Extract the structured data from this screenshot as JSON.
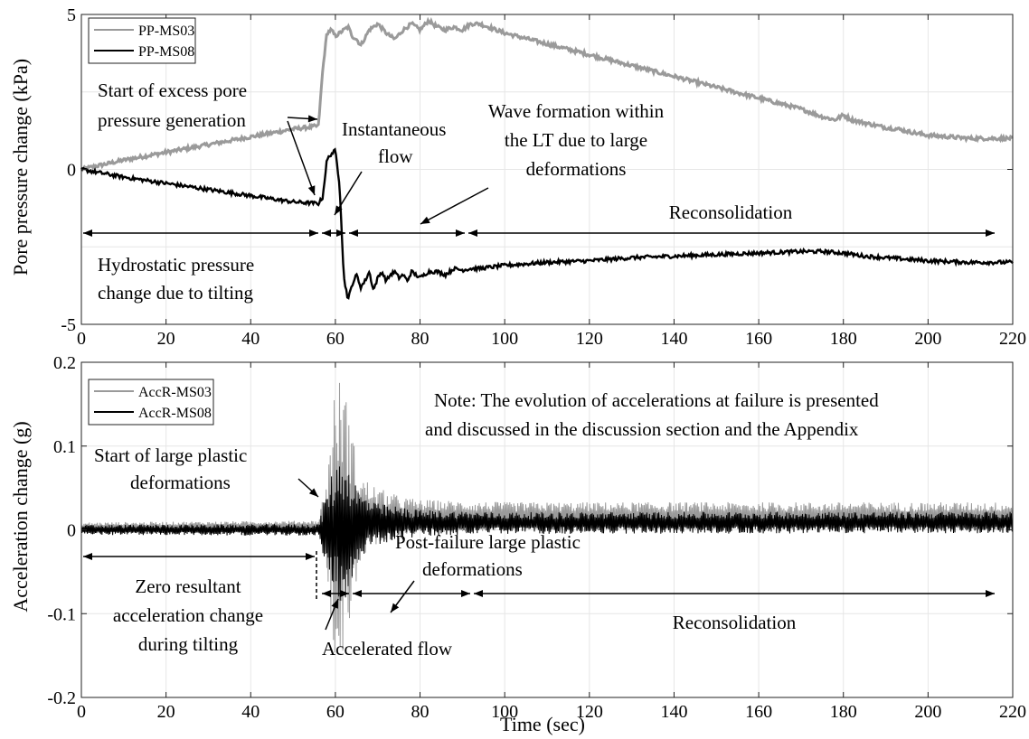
{
  "chart_data": [
    {
      "type": "line",
      "id": "top",
      "ylabel": "Pore pressure change (kPa)",
      "xlabel": "",
      "xlim": [
        0,
        220
      ],
      "ylim": [
        -5,
        5
      ],
      "xticks": [
        "0",
        "20",
        "40",
        "60",
        "80",
        "100",
        "120",
        "140",
        "160",
        "180",
        "200",
        "220"
      ],
      "yticks": [
        "5",
        "0",
        "-5"
      ],
      "grid": true,
      "legend_position": "top-left",
      "series": [
        {
          "name": "PP-MS03",
          "color": "#9a9a9a",
          "x": [
            0,
            10,
            20,
            30,
            40,
            50,
            56,
            57,
            58,
            59,
            60,
            61,
            62,
            63,
            64,
            65,
            66,
            68,
            70,
            72,
            74,
            76,
            78,
            80,
            82,
            84,
            86,
            88,
            90,
            92,
            94,
            96,
            100,
            110,
            120,
            130,
            140,
            150,
            160,
            170,
            175,
            178,
            180,
            182,
            185,
            190,
            193,
            196,
            200,
            210,
            220
          ],
          "y": [
            0,
            0.3,
            0.55,
            0.8,
            1.05,
            1.3,
            1.4,
            3.2,
            4.4,
            4.5,
            4.3,
            4.4,
            4.5,
            4.6,
            4.3,
            4.2,
            4.0,
            4.5,
            4.7,
            4.4,
            4.2,
            4.5,
            4.7,
            4.5,
            4.8,
            4.6,
            4.5,
            4.6,
            4.5,
            4.7,
            4.7,
            4.6,
            4.4,
            4.05,
            3.7,
            3.35,
            3.0,
            2.65,
            2.3,
            1.95,
            1.7,
            1.6,
            1.75,
            1.6,
            1.5,
            1.35,
            1.3,
            1.2,
            1.1,
            1.0,
            1.0
          ]
        },
        {
          "name": "PP-MS08",
          "color": "#000000",
          "x": [
            0,
            10,
            20,
            30,
            40,
            50,
            56,
            57,
            58,
            59,
            60,
            61,
            62,
            63,
            64,
            65,
            66,
            67,
            68,
            69,
            70,
            71,
            72,
            73,
            74,
            75,
            76,
            77,
            78,
            79,
            80,
            82,
            84,
            86,
            88,
            90,
            92,
            94,
            100,
            110,
            120,
            130,
            140,
            150,
            160,
            170,
            175,
            180,
            185,
            190,
            195,
            200,
            210,
            220
          ],
          "y": [
            0,
            -0.25,
            -0.45,
            -0.65,
            -0.85,
            -1.05,
            -1.1,
            -0.9,
            0.3,
            0.5,
            0.6,
            -0.5,
            -3.5,
            -4.2,
            -3.7,
            -3.4,
            -3.8,
            -3.6,
            -3.3,
            -3.9,
            -3.5,
            -3.3,
            -3.6,
            -3.4,
            -3.3,
            -3.5,
            -3.4,
            -3.6,
            -3.3,
            -3.4,
            -3.5,
            -3.3,
            -3.3,
            -3.4,
            -3.2,
            -3.25,
            -3.2,
            -3.2,
            -3.1,
            -3.0,
            -2.95,
            -2.85,
            -2.8,
            -2.75,
            -2.7,
            -2.65,
            -2.65,
            -2.7,
            -2.8,
            -2.85,
            -2.9,
            -2.95,
            -3.0,
            -3.0
          ]
        }
      ],
      "annotations": [
        {
          "lines": [
            "Start of excess pore",
            "pressure generation"
          ]
        },
        {
          "lines": [
            "Instantaneous",
            "flow"
          ]
        },
        {
          "lines": [
            "Wave formation within",
            "the LT due to large",
            "deformations"
          ]
        },
        {
          "lines": [
            "Reconsolidation"
          ]
        },
        {
          "lines": [
            "Hydrostatic pressure",
            "change due to tilting"
          ]
        }
      ]
    },
    {
      "type": "line",
      "id": "bottom",
      "ylabel": "Acceleration change (g)",
      "xlabel": "Time (sec)",
      "xlim": [
        0,
        220
      ],
      "ylim": [
        -0.2,
        0.2
      ],
      "xticks": [
        "0",
        "20",
        "40",
        "60",
        "80",
        "100",
        "120",
        "140",
        "160",
        "180",
        "200",
        "220"
      ],
      "yticks": [
        "0.2",
        "0.1",
        "0",
        "-0.1",
        "-0.2"
      ],
      "grid": true,
      "legend_position": "top-left",
      "series": [
        {
          "name": "AccR-MS03",
          "color": "#9a9a9a",
          "noise_band": [
            [
              0,
              0.006
            ],
            [
              56,
              0.006
            ],
            [
              58,
              0.06
            ],
            [
              60,
              0.17
            ],
            [
              62,
              0.17
            ],
            [
              64,
              0.1
            ],
            [
              66,
              0.05
            ],
            [
              70,
              0.035
            ],
            [
              75,
              0.025
            ],
            [
              80,
              0.02
            ],
            [
              100,
              0.017
            ],
            [
              220,
              0.017
            ]
          ],
          "baseline": [
            [
              0,
              0.003
            ],
            [
              56,
              0.005
            ],
            [
              60,
              0.01
            ],
            [
              66,
              0.015
            ],
            [
              80,
              0.016
            ],
            [
              220,
              0.016
            ]
          ]
        },
        {
          "name": "AccR-MS08",
          "color": "#000000",
          "noise_band": [
            [
              0,
              0.006
            ],
            [
              56,
              0.007
            ],
            [
              58,
              0.05
            ],
            [
              60,
              0.08
            ],
            [
              62,
              0.09
            ],
            [
              64,
              0.06
            ],
            [
              66,
              0.04
            ],
            [
              70,
              0.025
            ],
            [
              80,
              0.016
            ],
            [
              100,
              0.013
            ],
            [
              220,
              0.013
            ]
          ],
          "baseline": [
            [
              0,
              0.0
            ],
            [
              56,
              0.0
            ],
            [
              60,
              0.0
            ],
            [
              66,
              0.006
            ],
            [
              80,
              0.008
            ],
            [
              220,
              0.009
            ]
          ]
        }
      ],
      "annotations": [
        {
          "lines": [
            "Note: The evolution of accelerations at failure is presented",
            "and discussed in the discussion section and the Appendix"
          ]
        },
        {
          "lines": [
            "Start of large plastic",
            "deformations"
          ]
        },
        {
          "lines": [
            "Post-failure large plastic",
            "deformations"
          ]
        },
        {
          "lines": [
            "Zero resultant",
            "acceleration change",
            "during tilting"
          ]
        },
        {
          "lines": [
            "Accelerated flow"
          ]
        },
        {
          "lines": [
            "Reconsolidation"
          ]
        }
      ]
    }
  ]
}
